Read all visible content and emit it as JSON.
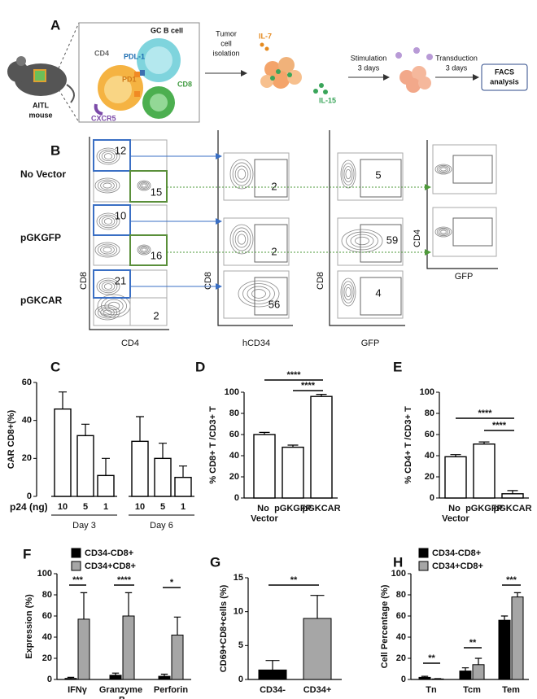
{
  "panel_a": {
    "label": "A",
    "mouse": [
      "AITL",
      "mouse"
    ],
    "gc_b_cell": "GC B cell",
    "cd4": "CD4",
    "pdl1": "PDL-1",
    "pd1": "PD1",
    "cd8": "CD8",
    "cxcr5": "CXCR5",
    "step1": [
      "Tumor",
      "cell",
      "isolation"
    ],
    "il7": "IL-7",
    "il15": "IL-15",
    "step2": [
      "Stimulation",
      "3 days"
    ],
    "step3": [
      "Transduction",
      "3 days"
    ],
    "readout": [
      "FACS",
      "analysis"
    ]
  },
  "panel_b": {
    "label": "B",
    "axis_labels": [
      [
        "CD8",
        "CD4"
      ],
      [
        "CD8",
        "hCD34"
      ],
      [
        "CD8",
        "GFP"
      ],
      [
        "CD4",
        "GFP"
      ]
    ],
    "rows": [
      {
        "name": "No Vector",
        "cd8_cd4": [
          12,
          15
        ],
        "cd8_hcd34": 2,
        "cd8_gfp": 5
      },
      {
        "name": "pGKGFP",
        "cd8_cd4": [
          10,
          16
        ],
        "cd8_hcd34": 2,
        "cd8_gfp": 59
      },
      {
        "name": "pGKCAR",
        "cd8_cd4": [
          21,
          2
        ],
        "cd8_hcd34": 56,
        "cd8_gfp": 4
      }
    ]
  },
  "chart_data": [
    {
      "type": "bar",
      "label": "C",
      "ylabel": "CAR CD8+(%)",
      "xlabel": "p24 (ng)",
      "categories": [
        "10",
        "5",
        "1",
        "10",
        "5",
        "1"
      ],
      "groups": [
        "Day 3",
        "Day 6"
      ],
      "values": [
        46,
        32,
        11,
        29,
        20,
        10
      ],
      "errors": [
        9,
        6,
        9,
        13,
        8,
        6
      ],
      "color": "#ffffff",
      "edgecolor": "#000000",
      "ylim": [
        0,
        60
      ],
      "yticks": [
        0,
        20,
        40,
        60
      ]
    },
    {
      "type": "bar",
      "label": "D",
      "ylabel": "% CD8+ T /CD3+ T",
      "categories": [
        "No Vector",
        "pGKGFP",
        "pGKCAR"
      ],
      "values": [
        60,
        48,
        96
      ],
      "errors": [
        2,
        2,
        2
      ],
      "color": "#ffffff",
      "edgecolor": "#000000",
      "ylim": [
        0,
        100
      ],
      "yticks": [
        0,
        20,
        40,
        60,
        80,
        100
      ],
      "annotations": [
        "****",
        "****"
      ]
    },
    {
      "type": "bar",
      "label": "E",
      "ylabel": "% CD4+ T /CD3+ T",
      "categories": [
        "No Vector",
        "pGKGFP",
        "pGKCAR"
      ],
      "values": [
        39,
        51,
        4
      ],
      "errors": [
        2,
        2,
        3
      ],
      "color": "#ffffff",
      "edgecolor": "#000000",
      "ylim": [
        0,
        100
      ],
      "yticks": [
        0,
        20,
        40,
        60,
        80,
        100
      ],
      "annotations": [
        "****",
        "****"
      ]
    },
    {
      "type": "bar",
      "label": "F",
      "ylabel": "Expression (%)",
      "categories": [
        "IFNγ",
        "Granzyme B",
        "Perforin"
      ],
      "series": [
        {
          "name": "CD34-CD8+",
          "color": "#000000",
          "values": [
            1,
            4,
            3
          ],
          "errors": [
            1,
            2,
            2
          ]
        },
        {
          "name": "CD34+CD8+",
          "color": "#a6a6a6",
          "values": [
            57,
            60,
            42
          ],
          "errors": [
            25,
            22,
            17
          ]
        }
      ],
      "ylim": [
        0,
        100
      ],
      "yticks": [
        0,
        20,
        40,
        60,
        80,
        100
      ],
      "legend": "top",
      "annotations": [
        "***",
        "****",
        "*"
      ]
    },
    {
      "type": "bar",
      "label": "G",
      "ylabel": "CD69+CD8+cells (%)",
      "categories": [
        "CD34-",
        "CD34+"
      ],
      "values": [
        1.4,
        9
      ],
      "errors": [
        1.4,
        3.4
      ],
      "colors": [
        "#000000",
        "#a6a6a6"
      ],
      "ylim": [
        0,
        15
      ],
      "yticks": [
        0,
        5,
        10,
        15
      ],
      "annotations": [
        "**"
      ]
    },
    {
      "type": "bar",
      "label": "H",
      "ylabel": "Cell Percentage (%)",
      "categories": [
        "Tn",
        "Tcm",
        "Tem"
      ],
      "series": [
        {
          "name": "CD34-CD8+",
          "color": "#000000",
          "values": [
            2,
            8,
            56
          ],
          "errors": [
            1,
            3,
            4
          ]
        },
        {
          "name": "CD34+CD8+",
          "color": "#a6a6a6",
          "values": [
            0.5,
            14,
            78
          ],
          "errors": [
            0.3,
            6,
            4
          ]
        }
      ],
      "ylim": [
        0,
        100
      ],
      "yticks": [
        0,
        20,
        40,
        60,
        80,
        100
      ],
      "legend": "top-left",
      "annotations": [
        "**",
        "**",
        "***"
      ]
    }
  ]
}
